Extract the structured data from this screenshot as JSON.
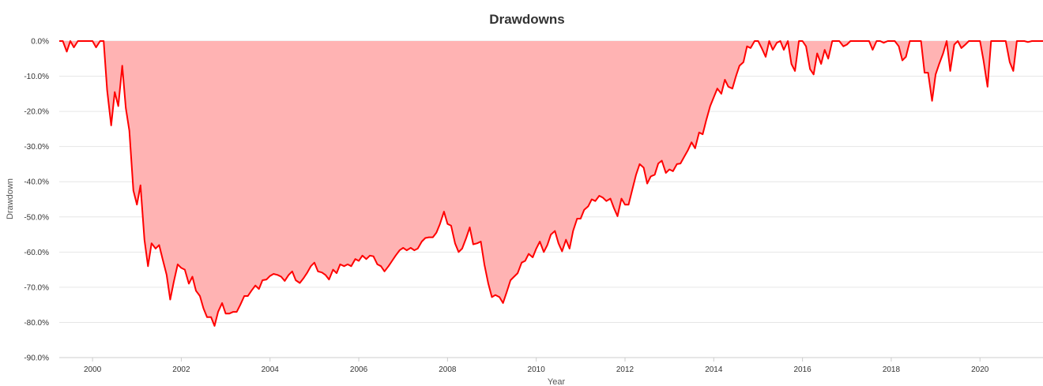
{
  "chart_data": {
    "type": "area",
    "title": "Drawdowns",
    "xlabel": "Year",
    "ylabel": "Drawdown",
    "xlim": [
      1999.25,
      2021.42
    ],
    "ylim": [
      -90,
      0
    ],
    "x_ticks": [
      2000,
      2002,
      2004,
      2006,
      2008,
      2010,
      2012,
      2014,
      2016,
      2018,
      2020
    ],
    "x_tick_labels": [
      "2000",
      "2002",
      "2004",
      "2006",
      "2008",
      "2010",
      "2012",
      "2014",
      "2016",
      "2018",
      "2020"
    ],
    "y_ticks": [
      0,
      -10,
      -20,
      -30,
      -40,
      -50,
      -60,
      -70,
      -80,
      -90
    ],
    "y_tick_labels": [
      "0.0%",
      "-10.0%",
      "-20.0%",
      "-30.0%",
      "-40.0%",
      "-50.0%",
      "-60.0%",
      "-70.0%",
      "-80.0%",
      "-90.0%"
    ],
    "grid": "horizontal",
    "colors": {
      "line": "#ff0000",
      "fill": "#ffb3b3",
      "grid": "#e6e6e6"
    },
    "series": [
      {
        "points": [
          [
            1999.25,
            0
          ],
          [
            1999.33,
            0
          ],
          [
            1999.42,
            -3.0
          ],
          [
            1999.5,
            0
          ],
          [
            1999.58,
            -1.8
          ],
          [
            1999.67,
            0
          ],
          [
            1999.75,
            0
          ],
          [
            1999.83,
            0
          ],
          [
            1999.92,
            0
          ],
          [
            2000.0,
            0
          ],
          [
            2000.08,
            -1.8
          ],
          [
            2000.17,
            0
          ],
          [
            2000.25,
            0
          ],
          [
            2000.33,
            -14.0
          ],
          [
            2000.42,
            -24.0
          ],
          [
            2000.5,
            -14.5
          ],
          [
            2000.58,
            -18.5
          ],
          [
            2000.67,
            -7.0
          ],
          [
            2000.75,
            -19.0
          ],
          [
            2000.83,
            -25.5
          ],
          [
            2000.92,
            -42.5
          ],
          [
            2001.0,
            -46.5
          ],
          [
            2001.08,
            -41.0
          ],
          [
            2001.17,
            -56.5
          ],
          [
            2001.25,
            -64.0
          ],
          [
            2001.33,
            -57.5
          ],
          [
            2001.42,
            -59.0
          ],
          [
            2001.5,
            -58.0
          ],
          [
            2001.58,
            -62.0
          ],
          [
            2001.67,
            -66.5
          ],
          [
            2001.75,
            -73.5
          ],
          [
            2001.83,
            -68.5
          ],
          [
            2001.92,
            -63.5
          ],
          [
            2002.0,
            -64.5
          ],
          [
            2002.08,
            -65.0
          ],
          [
            2002.17,
            -69.0
          ],
          [
            2002.25,
            -67.0
          ],
          [
            2002.33,
            -71.0
          ],
          [
            2002.42,
            -72.5
          ],
          [
            2002.5,
            -76.0
          ],
          [
            2002.58,
            -78.5
          ],
          [
            2002.67,
            -78.5
          ],
          [
            2002.75,
            -81.0
          ],
          [
            2002.83,
            -77.0
          ],
          [
            2002.92,
            -74.5
          ],
          [
            2003.0,
            -77.5
          ],
          [
            2003.08,
            -77.5
          ],
          [
            2003.17,
            -77.0
          ],
          [
            2003.25,
            -77.0
          ],
          [
            2003.33,
            -75.0
          ],
          [
            2003.42,
            -72.5
          ],
          [
            2003.5,
            -72.5
          ],
          [
            2003.58,
            -71.0
          ],
          [
            2003.67,
            -69.5
          ],
          [
            2003.75,
            -70.5
          ],
          [
            2003.83,
            -68.0
          ],
          [
            2003.92,
            -67.8
          ],
          [
            2004.0,
            -66.8
          ],
          [
            2004.08,
            -66.2
          ],
          [
            2004.17,
            -66.5
          ],
          [
            2004.25,
            -67.0
          ],
          [
            2004.33,
            -68.2
          ],
          [
            2004.42,
            -66.5
          ],
          [
            2004.5,
            -65.5
          ],
          [
            2004.58,
            -68.0
          ],
          [
            2004.67,
            -68.8
          ],
          [
            2004.75,
            -67.5
          ],
          [
            2004.83,
            -66.0
          ],
          [
            2004.92,
            -64.0
          ],
          [
            2005.0,
            -63.0
          ],
          [
            2005.08,
            -65.5
          ],
          [
            2005.17,
            -65.8
          ],
          [
            2005.25,
            -66.5
          ],
          [
            2005.33,
            -67.8
          ],
          [
            2005.42,
            -65.0
          ],
          [
            2005.5,
            -66.0
          ],
          [
            2005.58,
            -63.5
          ],
          [
            2005.67,
            -64.0
          ],
          [
            2005.75,
            -63.5
          ],
          [
            2005.83,
            -64.0
          ],
          [
            2005.92,
            -62.0
          ],
          [
            2006.0,
            -62.5
          ],
          [
            2006.08,
            -61.0
          ],
          [
            2006.17,
            -62.0
          ],
          [
            2006.25,
            -61.0
          ],
          [
            2006.33,
            -61.2
          ],
          [
            2006.42,
            -63.5
          ],
          [
            2006.5,
            -64.0
          ],
          [
            2006.58,
            -65.5
          ],
          [
            2006.67,
            -64.0
          ],
          [
            2006.75,
            -62.5
          ],
          [
            2006.83,
            -61.0
          ],
          [
            2006.92,
            -59.5
          ],
          [
            2007.0,
            -58.8
          ],
          [
            2007.08,
            -59.5
          ],
          [
            2007.17,
            -58.8
          ],
          [
            2007.25,
            -59.5
          ],
          [
            2007.33,
            -59.0
          ],
          [
            2007.42,
            -57.0
          ],
          [
            2007.5,
            -56.0
          ],
          [
            2007.58,
            -55.8
          ],
          [
            2007.67,
            -55.8
          ],
          [
            2007.75,
            -54.5
          ],
          [
            2007.83,
            -52.0
          ],
          [
            2007.92,
            -48.5
          ],
          [
            2008.0,
            -52.0
          ],
          [
            2008.08,
            -52.5
          ],
          [
            2008.17,
            -57.5
          ],
          [
            2008.25,
            -60.0
          ],
          [
            2008.33,
            -59.0
          ],
          [
            2008.42,
            -56.0
          ],
          [
            2008.5,
            -53.0
          ],
          [
            2008.58,
            -57.8
          ],
          [
            2008.67,
            -57.5
          ],
          [
            2008.75,
            -57.0
          ],
          [
            2008.83,
            -63.5
          ],
          [
            2008.92,
            -69.0
          ],
          [
            2009.0,
            -72.8
          ],
          [
            2009.08,
            -72.2
          ],
          [
            2009.17,
            -72.8
          ],
          [
            2009.25,
            -74.5
          ],
          [
            2009.33,
            -71.5
          ],
          [
            2009.42,
            -68.0
          ],
          [
            2009.5,
            -67.0
          ],
          [
            2009.58,
            -66.0
          ],
          [
            2009.67,
            -63.0
          ],
          [
            2009.75,
            -62.5
          ],
          [
            2009.83,
            -60.5
          ],
          [
            2009.92,
            -61.5
          ],
          [
            2010.0,
            -59.0
          ],
          [
            2010.08,
            -57.0
          ],
          [
            2010.17,
            -60.0
          ],
          [
            2010.25,
            -58.0
          ],
          [
            2010.33,
            -55.0
          ],
          [
            2010.42,
            -54.0
          ],
          [
            2010.5,
            -57.5
          ],
          [
            2010.58,
            -59.8
          ],
          [
            2010.67,
            -56.5
          ],
          [
            2010.75,
            -59.0
          ],
          [
            2010.83,
            -54.0
          ],
          [
            2010.92,
            -50.5
          ],
          [
            2011.0,
            -50.5
          ],
          [
            2011.08,
            -48.0
          ],
          [
            2011.17,
            -47.0
          ],
          [
            2011.25,
            -45.0
          ],
          [
            2011.33,
            -45.5
          ],
          [
            2011.42,
            -44.0
          ],
          [
            2011.5,
            -44.5
          ],
          [
            2011.58,
            -45.5
          ],
          [
            2011.67,
            -44.8
          ],
          [
            2011.75,
            -47.5
          ],
          [
            2011.83,
            -49.8
          ],
          [
            2011.92,
            -44.8
          ],
          [
            2012.0,
            -46.5
          ],
          [
            2012.08,
            -46.5
          ],
          [
            2012.17,
            -42.0
          ],
          [
            2012.25,
            -38.0
          ],
          [
            2012.33,
            -35.0
          ],
          [
            2012.42,
            -36.0
          ],
          [
            2012.5,
            -40.5
          ],
          [
            2012.58,
            -38.5
          ],
          [
            2012.67,
            -38.0
          ],
          [
            2012.75,
            -34.8
          ],
          [
            2012.83,
            -34.0
          ],
          [
            2012.92,
            -37.5
          ],
          [
            2013.0,
            -36.5
          ],
          [
            2013.08,
            -37.0
          ],
          [
            2013.17,
            -35.0
          ],
          [
            2013.25,
            -34.8
          ],
          [
            2013.33,
            -33.0
          ],
          [
            2013.42,
            -31.0
          ],
          [
            2013.5,
            -28.8
          ],
          [
            2013.58,
            -30.5
          ],
          [
            2013.67,
            -26.0
          ],
          [
            2013.75,
            -26.5
          ],
          [
            2013.83,
            -22.5
          ],
          [
            2013.92,
            -18.5
          ],
          [
            2014.0,
            -16.0
          ],
          [
            2014.08,
            -13.5
          ],
          [
            2014.17,
            -15.0
          ],
          [
            2014.25,
            -11.0
          ],
          [
            2014.33,
            -13.0
          ],
          [
            2014.42,
            -13.5
          ],
          [
            2014.5,
            -10.0
          ],
          [
            2014.58,
            -7.0
          ],
          [
            2014.67,
            -6.0
          ],
          [
            2014.75,
            -1.5
          ],
          [
            2014.83,
            -2.0
          ],
          [
            2014.92,
            0
          ],
          [
            2015.0,
            0
          ],
          [
            2015.08,
            -2.0
          ],
          [
            2015.17,
            -4.5
          ],
          [
            2015.25,
            0
          ],
          [
            2015.33,
            -2.5
          ],
          [
            2015.42,
            -0.5
          ],
          [
            2015.5,
            0
          ],
          [
            2015.58,
            -2.5
          ],
          [
            2015.67,
            0
          ],
          [
            2015.75,
            -6.5
          ],
          [
            2015.83,
            -8.5
          ],
          [
            2015.92,
            0
          ],
          [
            2016.0,
            0
          ],
          [
            2016.08,
            -1.5
          ],
          [
            2016.17,
            -8.0
          ],
          [
            2016.25,
            -9.5
          ],
          [
            2016.33,
            -3.5
          ],
          [
            2016.42,
            -6.5
          ],
          [
            2016.5,
            -2.5
          ],
          [
            2016.58,
            -5.0
          ],
          [
            2016.67,
            0
          ],
          [
            2016.75,
            0
          ],
          [
            2016.83,
            0
          ],
          [
            2016.92,
            -1.5
          ],
          [
            2017.0,
            -1.0
          ],
          [
            2017.08,
            0
          ],
          [
            2017.17,
            0
          ],
          [
            2017.25,
            0
          ],
          [
            2017.33,
            0
          ],
          [
            2017.42,
            0
          ],
          [
            2017.5,
            0
          ],
          [
            2017.58,
            -2.5
          ],
          [
            2017.67,
            0
          ],
          [
            2017.75,
            0
          ],
          [
            2017.83,
            -0.5
          ],
          [
            2017.92,
            0
          ],
          [
            2018.0,
            0
          ],
          [
            2018.08,
            0
          ],
          [
            2018.17,
            -1.5
          ],
          [
            2018.25,
            -5.5
          ],
          [
            2018.33,
            -4.5
          ],
          [
            2018.42,
            0
          ],
          [
            2018.5,
            0
          ],
          [
            2018.58,
            0
          ],
          [
            2018.67,
            0
          ],
          [
            2018.75,
            -9.0
          ],
          [
            2018.83,
            -9.0
          ],
          [
            2018.92,
            -17.0
          ],
          [
            2019.0,
            -9.5
          ],
          [
            2019.08,
            -6.5
          ],
          [
            2019.17,
            -3.5
          ],
          [
            2019.25,
            0
          ],
          [
            2019.33,
            -8.5
          ],
          [
            2019.42,
            -1.0
          ],
          [
            2019.5,
            0
          ],
          [
            2019.58,
            -2.0
          ],
          [
            2019.67,
            -1.0
          ],
          [
            2019.75,
            0
          ],
          [
            2019.83,
            0
          ],
          [
            2019.92,
            0
          ],
          [
            2020.0,
            0
          ],
          [
            2020.08,
            -5.5
          ],
          [
            2020.17,
            -13.0
          ],
          [
            2020.25,
            0
          ],
          [
            2020.33,
            0
          ],
          [
            2020.42,
            0
          ],
          [
            2020.5,
            0
          ],
          [
            2020.58,
            0
          ],
          [
            2020.67,
            -6.0
          ],
          [
            2020.75,
            -8.5
          ],
          [
            2020.83,
            0
          ],
          [
            2020.92,
            0
          ],
          [
            2021.0,
            0
          ],
          [
            2021.08,
            -0.3
          ],
          [
            2021.17,
            0
          ],
          [
            2021.25,
            0
          ],
          [
            2021.33,
            0
          ],
          [
            2021.42,
            0
          ]
        ]
      }
    ]
  }
}
